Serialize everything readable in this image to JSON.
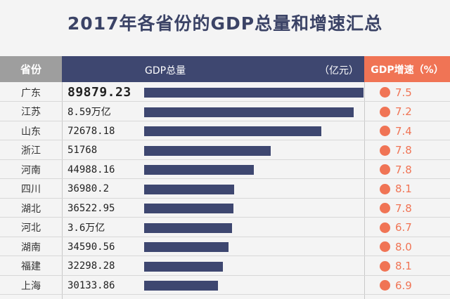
{
  "chart_data": {
    "type": "table",
    "title": "2017年各省份的GDP总量和增速汇总",
    "columns": {
      "province": "省份",
      "gdp": "GDP总量",
      "unit": "（亿元）",
      "growth": "GDP增速（%）"
    },
    "rows": [
      {
        "province": "广东",
        "gdp_label": "89879.23",
        "gdp": 89879.23,
        "growth": "7.5"
      },
      {
        "province": "江苏",
        "gdp_label": "8.59万亿",
        "gdp": 85900,
        "growth": "7.2"
      },
      {
        "province": "山东",
        "gdp_label": "72678.18",
        "gdp": 72678.18,
        "growth": "7.4"
      },
      {
        "province": "浙江",
        "gdp_label": "51768",
        "gdp": 51768,
        "growth": "7.8"
      },
      {
        "province": "河南",
        "gdp_label": "44988.16",
        "gdp": 44988.16,
        "growth": "7.8"
      },
      {
        "province": "四川",
        "gdp_label": "36980.2",
        "gdp": 36980.2,
        "growth": "8.1"
      },
      {
        "province": "湖北",
        "gdp_label": "36522.95",
        "gdp": 36522.95,
        "growth": "7.8"
      },
      {
        "province": "河北",
        "gdp_label": "3.6万亿",
        "gdp": 36000,
        "growth": "6.7"
      },
      {
        "province": "湖南",
        "gdp_label": "34590.56",
        "gdp": 34590.56,
        "growth": "8.0"
      },
      {
        "province": "福建",
        "gdp_label": "32298.28",
        "gdp": 32298.28,
        "growth": "8.1"
      },
      {
        "province": "上海",
        "gdp_label": "30133.86",
        "gdp": 30133.86,
        "growth": "6.9"
      }
    ],
    "colors": {
      "bar": "#3e4770",
      "growth": "#f07455",
      "header_province": "#9e9e9e"
    }
  }
}
